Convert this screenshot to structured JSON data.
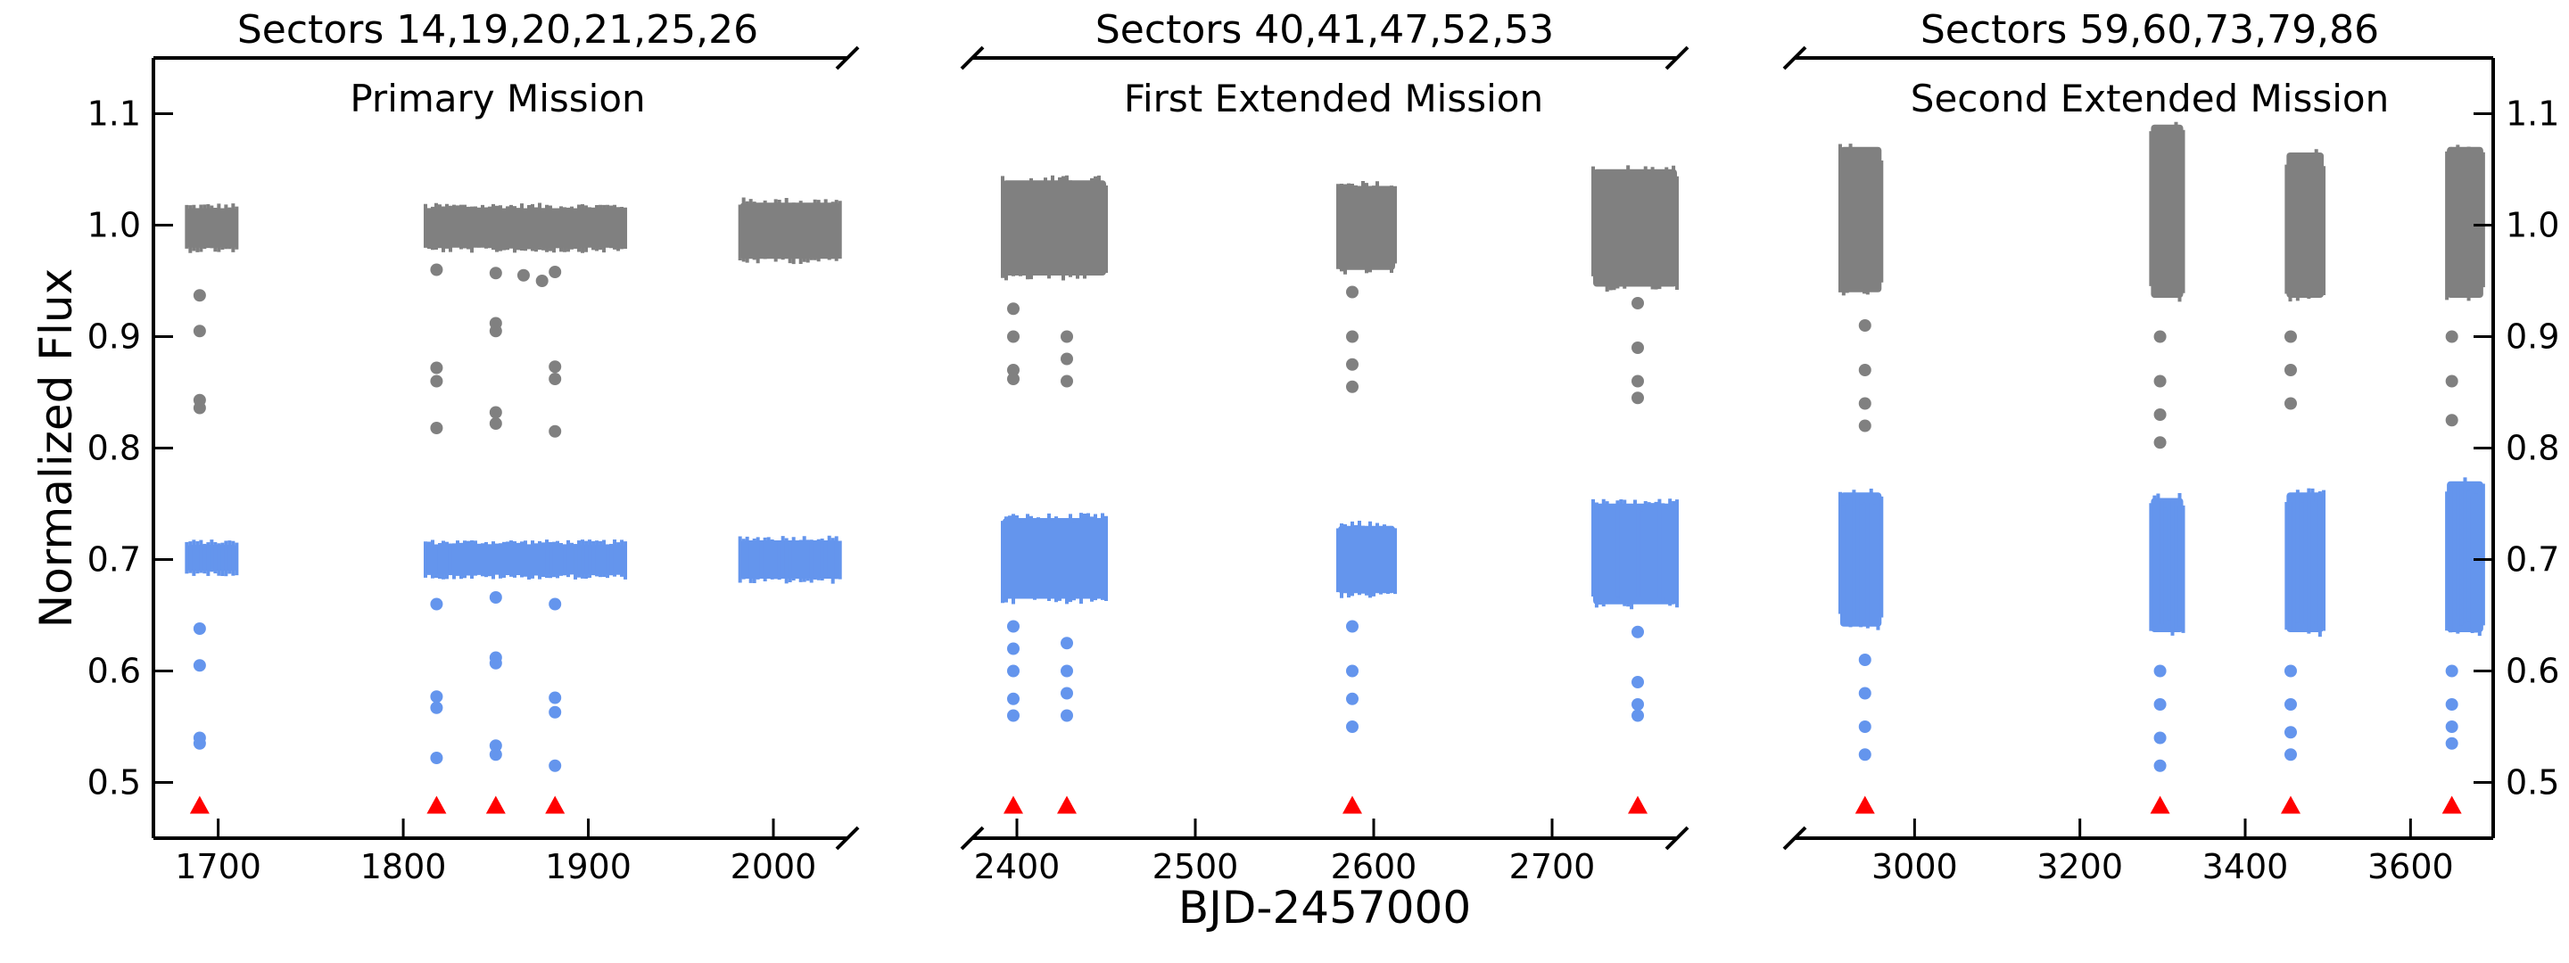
{
  "chart_data": {
    "type": "scatter",
    "ylabel": "Normalized Flux",
    "xlabel": "BJD-2457000",
    "ylim": [
      0.45,
      1.15
    ],
    "yticks": [
      0.5,
      0.6,
      0.7,
      0.8,
      0.9,
      1.0,
      1.1
    ],
    "ytick_labels": [
      "0.5",
      "0.6",
      "0.7",
      "0.8",
      "0.9",
      "1.0",
      "1.1"
    ],
    "colors": {
      "upper": "#808080",
      "lower": "#6495ed",
      "marker": "#ff0000"
    },
    "panels": [
      {
        "title": "Sectors 14,19,20,21,25,26",
        "subtitle": "Primary Mission",
        "xlim": [
          1665,
          2040
        ],
        "xticks": [
          1700,
          1800,
          1900,
          2000
        ],
        "xtick_labels": [
          "1700",
          "1800",
          "1900",
          "2000"
        ],
        "series": [
          {
            "color_key": "upper",
            "segments": [
              [
                1683,
                1710,
                0.975,
                1.02
              ],
              [
                1812,
                1920,
                0.975,
                1.02
              ],
              [
                1982,
                2036,
                0.965,
                1.025
              ]
            ],
            "dips": [
              [
                1690,
                0.937
              ],
              [
                1690,
                0.905
              ],
              [
                1690,
                0.843
              ],
              [
                1690,
                0.836
              ],
              [
                1818,
                0.872
              ],
              [
                1818,
                0.86
              ],
              [
                1818,
                0.818
              ],
              [
                1818,
                0.96
              ],
              [
                1850,
                0.912
              ],
              [
                1850,
                0.905
              ],
              [
                1850,
                0.832
              ],
              [
                1850,
                0.822
              ],
              [
                1850,
                0.957
              ],
              [
                1882,
                0.873
              ],
              [
                1882,
                0.862
              ],
              [
                1882,
                0.815
              ],
              [
                1882,
                0.958
              ],
              [
                1875,
                0.95
              ],
              [
                1865,
                0.955
              ]
            ]
          },
          {
            "color_key": "lower",
            "segments": [
              [
                1683,
                1710,
                0.685,
                0.718
              ],
              [
                1812,
                1920,
                0.682,
                0.718
              ],
              [
                1982,
                2036,
                0.678,
                0.722
              ]
            ],
            "dips": [
              [
                1690,
                0.638
              ],
              [
                1690,
                0.605
              ],
              [
                1690,
                0.54
              ],
              [
                1690,
                0.535
              ],
              [
                1818,
                0.577
              ],
              [
                1818,
                0.567
              ],
              [
                1818,
                0.522
              ],
              [
                1818,
                0.66
              ],
              [
                1850,
                0.666
              ],
              [
                1850,
                0.612
              ],
              [
                1850,
                0.607
              ],
              [
                1850,
                0.533
              ],
              [
                1850,
                0.525
              ],
              [
                1882,
                0.576
              ],
              [
                1882,
                0.563
              ],
              [
                1882,
                0.515
              ],
              [
                1882,
                0.66
              ]
            ]
          }
        ],
        "markers": [
          1690,
          1818,
          1850,
          1882
        ]
      },
      {
        "title": "Sectors 40,41,47,52,53",
        "subtitle": "First Extended Mission",
        "xlim": [
          2375,
          2770
        ],
        "xticks": [
          2400,
          2500,
          2600,
          2700
        ],
        "xtick_labels": [
          "2400",
          "2500",
          "2600",
          "2700"
        ],
        "series": [
          {
            "color_key": "upper",
            "segments": [
              [
                2392,
                2450,
                0.95,
                1.045
              ],
              [
                2580,
                2612,
                0.955,
                1.04
              ],
              [
                2723,
                2770,
                0.94,
                1.055
              ]
            ],
            "dips": [
              [
                2398,
                0.925
              ],
              [
                2398,
                0.9
              ],
              [
                2398,
                0.87
              ],
              [
                2398,
                0.862
              ],
              [
                2428,
                0.9
              ],
              [
                2428,
                0.88
              ],
              [
                2428,
                0.86
              ],
              [
                2588,
                0.94
              ],
              [
                2588,
                0.9
              ],
              [
                2588,
                0.875
              ],
              [
                2588,
                0.855
              ],
              [
                2748,
                0.93
              ],
              [
                2748,
                0.89
              ],
              [
                2748,
                0.86
              ],
              [
                2748,
                0.845
              ]
            ]
          },
          {
            "color_key": "lower",
            "segments": [
              [
                2392,
                2450,
                0.66,
                0.742
              ],
              [
                2580,
                2612,
                0.665,
                0.735
              ],
              [
                2723,
                2770,
                0.655,
                0.755
              ]
            ],
            "dips": [
              [
                2398,
                0.64
              ],
              [
                2398,
                0.62
              ],
              [
                2398,
                0.6
              ],
              [
                2398,
                0.575
              ],
              [
                2398,
                0.56
              ],
              [
                2428,
                0.625
              ],
              [
                2428,
                0.6
              ],
              [
                2428,
                0.58
              ],
              [
                2428,
                0.56
              ],
              [
                2588,
                0.64
              ],
              [
                2588,
                0.6
              ],
              [
                2588,
                0.575
              ],
              [
                2588,
                0.55
              ],
              [
                2748,
                0.635
              ],
              [
                2748,
                0.59
              ],
              [
                2748,
                0.57
              ],
              [
                2748,
                0.56
              ]
            ]
          }
        ],
        "markers": [
          2398,
          2428,
          2588,
          2748
        ]
      },
      {
        "title": "Sectors 59,60,73,79,86",
        "subtitle": "Second Extended Mission",
        "xlim": [
          2855,
          3700
        ],
        "xticks": [
          3000,
          3200,
          3400,
          3600
        ],
        "xtick_labels": [
          "3000",
          "3200",
          "3400",
          "3600"
        ],
        "series": [
          {
            "color_key": "upper",
            "segments": [
              [
                2910,
                2960,
                0.935,
                1.075
              ],
              [
                3286,
                3325,
                0.93,
                1.095
              ],
              [
                3450,
                3495,
                0.93,
                1.07
              ],
              [
                3644,
                3688,
                0.93,
                1.075
              ]
            ],
            "dips": [
              [
                2940,
                0.91
              ],
              [
                2940,
                0.87
              ],
              [
                2940,
                0.84
              ],
              [
                2940,
                0.82
              ],
              [
                3297,
                0.9
              ],
              [
                3297,
                0.86
              ],
              [
                3297,
                0.83
              ],
              [
                3297,
                0.805
              ],
              [
                3455,
                0.9
              ],
              [
                3455,
                0.87
              ],
              [
                3455,
                0.84
              ],
              [
                3650,
                0.9
              ],
              [
                3650,
                0.86
              ],
              [
                3650,
                0.825
              ]
            ]
          },
          {
            "color_key": "lower",
            "segments": [
              [
                2910,
                2960,
                0.635,
                0.765
              ],
              [
                3286,
                3325,
                0.63,
                0.76
              ],
              [
                3450,
                3495,
                0.63,
                0.765
              ],
              [
                3644,
                3688,
                0.63,
                0.775
              ]
            ],
            "dips": [
              [
                2940,
                0.61
              ],
              [
                2940,
                0.58
              ],
              [
                2940,
                0.55
              ],
              [
                2940,
                0.525
              ],
              [
                3297,
                0.6
              ],
              [
                3297,
                0.57
              ],
              [
                3297,
                0.54
              ],
              [
                3297,
                0.515
              ],
              [
                3455,
                0.6
              ],
              [
                3455,
                0.57
              ],
              [
                3455,
                0.545
              ],
              [
                3455,
                0.525
              ],
              [
                3650,
                0.6
              ],
              [
                3650,
                0.57
              ],
              [
                3650,
                0.55
              ],
              [
                3650,
                0.535
              ]
            ]
          }
        ],
        "markers": [
          2940,
          3297,
          3455,
          3650
        ]
      }
    ]
  }
}
